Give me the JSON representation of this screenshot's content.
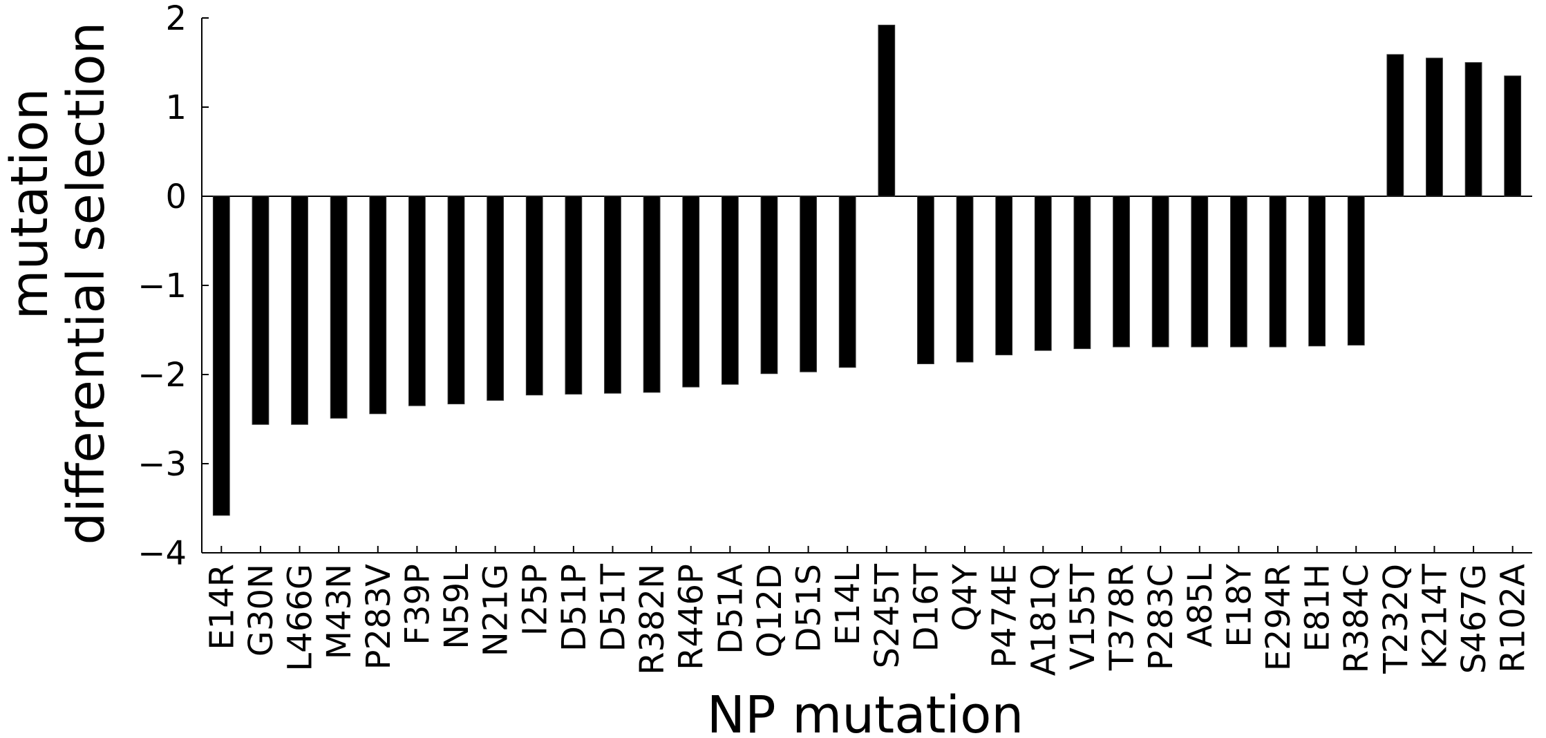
{
  "chart_data": {
    "type": "bar",
    "xlabel": "NP mutation",
    "ylabel": [
      "mutation",
      "differential selection"
    ],
    "ylim": [
      -4,
      2
    ],
    "yticks": [
      "2",
      "1",
      "0",
      "−1",
      "−2",
      "−3",
      "−4"
    ],
    "bar_color": "#000000",
    "grid": false,
    "categories": [
      "E14R",
      "G30N",
      "L466G",
      "M43N",
      "P283V",
      "F39P",
      "N59L",
      "N21G",
      "I25P",
      "D51P",
      "D51T",
      "R382N",
      "R446P",
      "D51A",
      "Q12D",
      "D51S",
      "E14L",
      "S245T",
      "D16T",
      "Q4Y",
      "P474E",
      "A181Q",
      "V155T",
      "T378R",
      "P283C",
      "A85L",
      "E18Y",
      "E294R",
      "E81H",
      "R384C",
      "T232Q",
      "K214T",
      "S467G",
      "R102A"
    ],
    "values": [
      -3.58,
      -2.56,
      -2.56,
      -2.49,
      -2.44,
      -2.35,
      -2.33,
      -2.29,
      -2.23,
      -2.22,
      -2.21,
      -2.2,
      -2.14,
      -2.11,
      -1.99,
      -1.97,
      -1.92,
      1.92,
      -1.88,
      -1.86,
      -1.78,
      -1.73,
      -1.71,
      -1.69,
      -1.69,
      -1.69,
      -1.69,
      -1.69,
      -1.68,
      -1.67,
      1.59,
      1.55,
      1.5,
      1.35
    ]
  }
}
